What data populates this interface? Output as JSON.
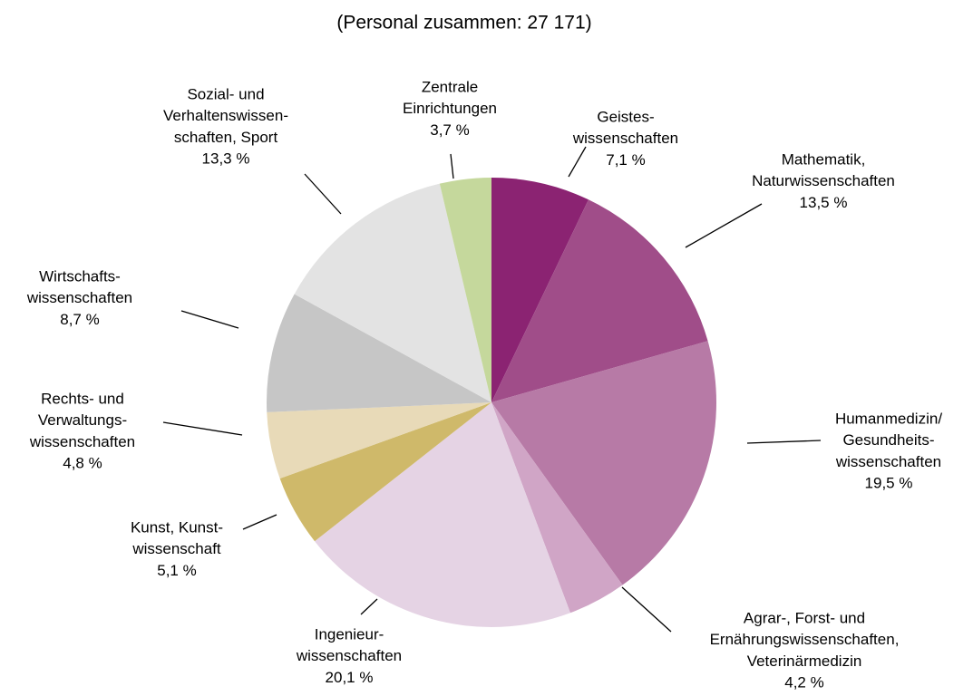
{
  "chart_data": {
    "type": "pie",
    "title": "(Personal zusammen: 27 171)",
    "categories": [
      [
        "Geistes-",
        "wissenschaften"
      ],
      [
        "Mathematik,",
        "Naturwissenschaften"
      ],
      [
        "Humanmedizin/",
        "Gesundheits-",
        "wissenschaften"
      ],
      [
        "Agrar-, Forst- und",
        "Ernährungswissenschaften,",
        "Veterinärmedizin"
      ],
      [
        "Ingenieur-",
        "wissenschaften"
      ],
      [
        "Kunst, Kunst-",
        "wissenschaft"
      ],
      [
        "Rechts- und",
        "Verwaltungs-",
        "wissenschaften"
      ],
      [
        "Wirtschafts-",
        "wissenschaften"
      ],
      [
        "Sozial- und",
        "Verhaltenswissen-",
        "schaften, Sport"
      ],
      [
        "Zentrale",
        "Einrichtungen"
      ]
    ],
    "values": [
      7.1,
      13.5,
      19.5,
      4.2,
      20.1,
      5.1,
      4.8,
      8.7,
      13.3,
      3.7
    ],
    "value_labels": [
      "7,1 %",
      "13,5 %",
      "19,5 %",
      "4,2 %",
      "20,1 %",
      "5,1 %",
      "4,8 %",
      "8,7 %",
      "13,3 %",
      "3,7 %"
    ],
    "colors": [
      "#8b2372",
      "#a04d89",
      "#b77aa6",
      "#d0a5c6",
      "#e5d3e4",
      "#cfb96a",
      "#e8dab8",
      "#c6c6c6",
      "#e3e3e3",
      "#c5d89c"
    ]
  }
}
